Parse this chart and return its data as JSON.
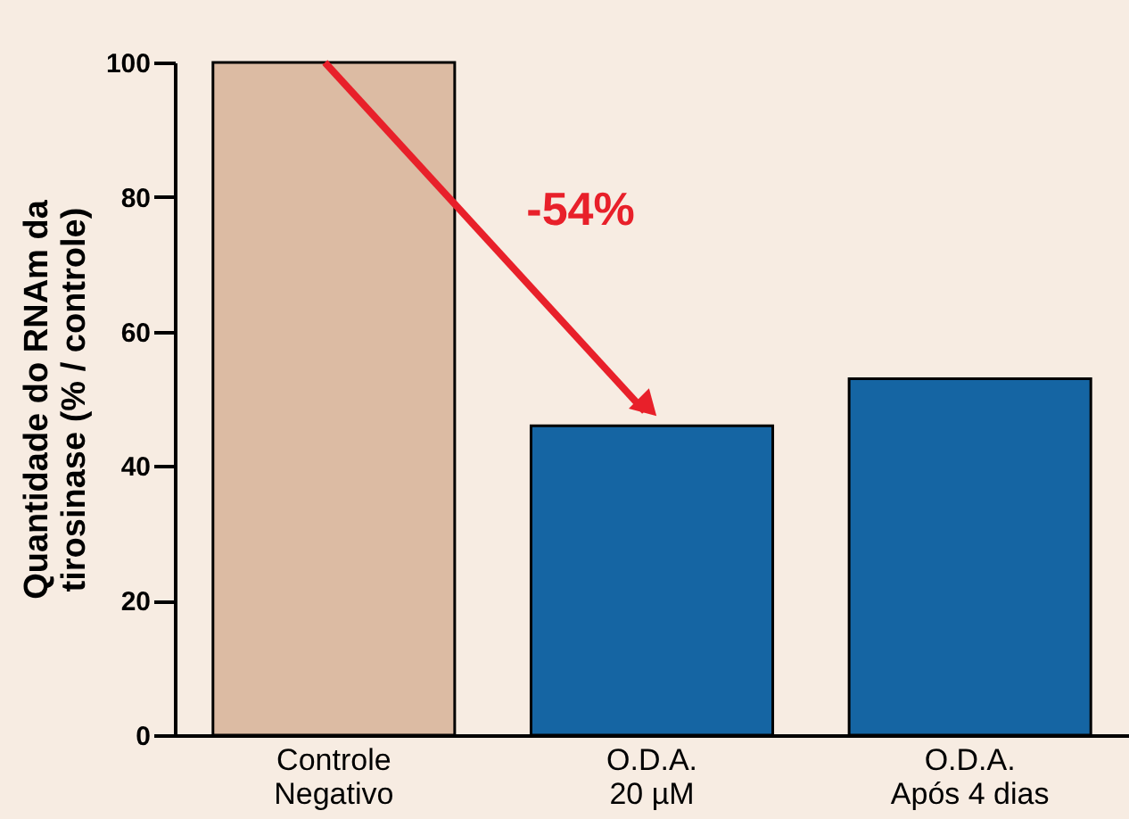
{
  "chart_data": {
    "type": "bar",
    "ylabel": "Quantidade do RNAm da\ntirosinase (% / controle)",
    "categories": [
      "Controle\nNegativo",
      "O.D.A.\n20 µM",
      "O.D.A.\nApós 4 dias"
    ],
    "values": [
      100,
      46,
      53
    ],
    "colors": [
      "#dcbba3",
      "#1565a3",
      "#1565a3"
    ],
    "ylim": [
      0,
      100
    ],
    "yticks": [
      0,
      20,
      40,
      60,
      80,
      100
    ],
    "grid": false,
    "annotations": [
      "-54%"
    ]
  }
}
